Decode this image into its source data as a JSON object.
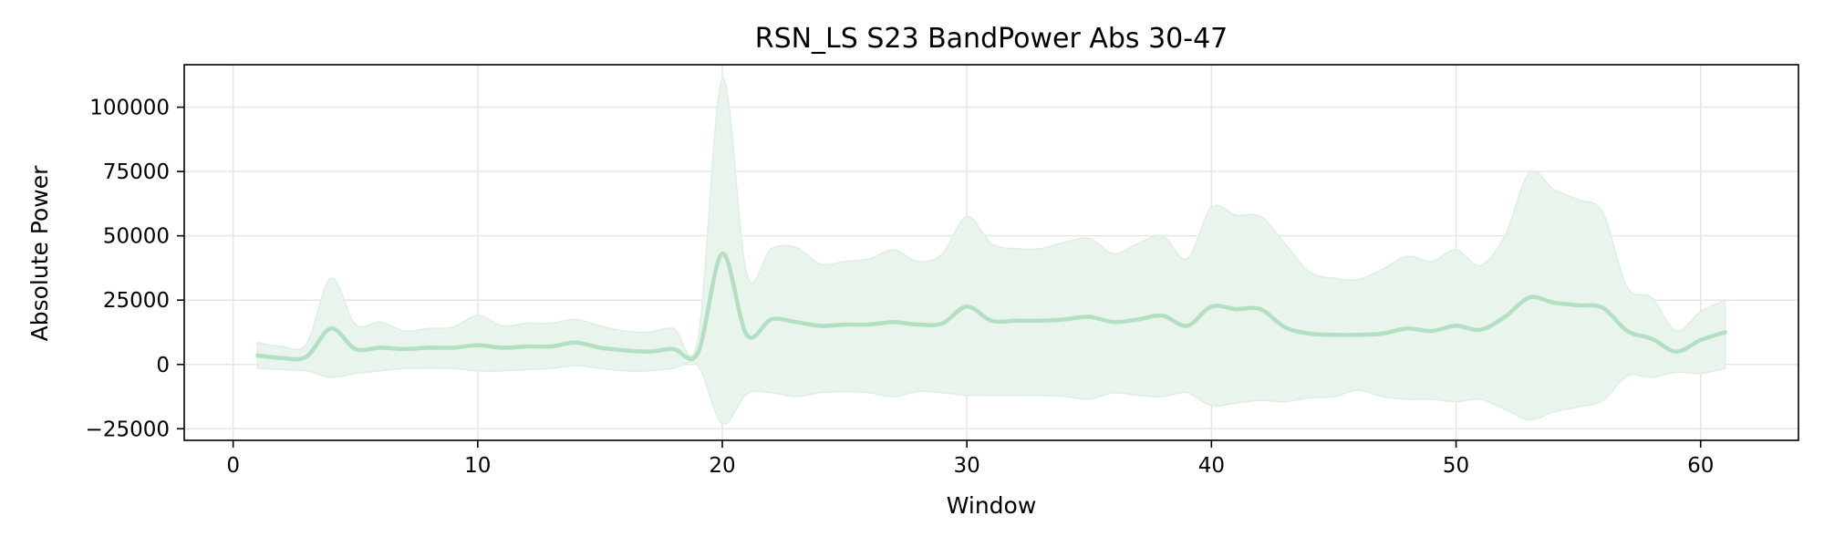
{
  "chart_data": {
    "type": "line",
    "title": "RSN_LS S23 BandPower Abs 30-47",
    "xlabel": "Window",
    "ylabel": "Absolute Power",
    "xlim": [
      -2,
      64
    ],
    "ylim": [
      -29500,
      116500
    ],
    "xticks": [
      0,
      10,
      20,
      30,
      40,
      50,
      60
    ],
    "yticks": [
      -25000,
      0,
      25000,
      50000,
      75000,
      100000
    ],
    "ytick_labels": [
      "−25000",
      "0",
      "25000",
      "50000",
      "75000",
      "100000"
    ],
    "grid": true,
    "colors": {
      "line": "#b3dfc2",
      "band": "#e9f5ec",
      "band_edge": "#dcefe2",
      "grid": "#e6e6e6",
      "axis": "#000000"
    },
    "series": [
      {
        "x": [
          1,
          2,
          3,
          4,
          5,
          6,
          7,
          8,
          9,
          10,
          11,
          12,
          13,
          14,
          15,
          16,
          17,
          18,
          19,
          20,
          21,
          22,
          23,
          24,
          25,
          26,
          27,
          28,
          29,
          30,
          31,
          32,
          33,
          34,
          35,
          36,
          37,
          38,
          39,
          40,
          41,
          42,
          43,
          44,
          45,
          46,
          47,
          48,
          49,
          50,
          51,
          52,
          53,
          54,
          55,
          56,
          57,
          58,
          59,
          60,
          61
        ],
        "mean": [
          3500,
          2500,
          3000,
          14000,
          6000,
          6500,
          6000,
          6500,
          6500,
          7500,
          6500,
          7000,
          7000,
          8500,
          6500,
          5500,
          5000,
          6000,
          4500,
          43000,
          11500,
          17500,
          16500,
          15000,
          15500,
          15500,
          16500,
          15500,
          16000,
          22500,
          17000,
          17000,
          17000,
          17500,
          18500,
          16500,
          17500,
          19000,
          15000,
          22500,
          21500,
          21500,
          14500,
          12000,
          11500,
          11500,
          12000,
          14000,
          13000,
          15000,
          13500,
          18500,
          26000,
          24000,
          23000,
          22000,
          13000,
          10000,
          5000,
          9500,
          12500
        ],
        "upper": [
          8500,
          7000,
          8000,
          33500,
          15500,
          16500,
          13000,
          14000,
          14500,
          19000,
          15000,
          16000,
          16000,
          17500,
          15000,
          13000,
          12500,
          14000,
          9500,
          111000,
          35000,
          45000,
          45500,
          39000,
          40000,
          41000,
          44500,
          40000,
          43000,
          57500,
          47000,
          45000,
          45000,
          47500,
          49000,
          43000,
          47000,
          50000,
          41000,
          61000,
          58000,
          57500,
          47000,
          36000,
          33500,
          33000,
          37000,
          42000,
          40000,
          44500,
          38500,
          50000,
          74500,
          68000,
          64000,
          59000,
          30000,
          26000,
          13000,
          20500,
          25000
        ],
        "lower": [
          -1500,
          -2000,
          -2500,
          -5000,
          -3500,
          -2500,
          -1500,
          -1500,
          -1500,
          -2500,
          -2500,
          -2000,
          -1500,
          -500,
          -1500,
          -2500,
          -2500,
          -1500,
          -500,
          -23000,
          -11500,
          -11000,
          -12500,
          -11000,
          -10500,
          -11000,
          -12500,
          -10500,
          -11000,
          -12000,
          -12000,
          -12000,
          -12000,
          -12500,
          -13500,
          -11000,
          -12000,
          -12500,
          -11000,
          -16000,
          -15000,
          -14000,
          -14500,
          -13000,
          -12500,
          -10000,
          -12500,
          -13500,
          -13500,
          -14500,
          -13500,
          -17500,
          -21500,
          -18500,
          -16500,
          -14000,
          -4500,
          -5000,
          -3000,
          -3500,
          -1500
        ]
      }
    ]
  }
}
